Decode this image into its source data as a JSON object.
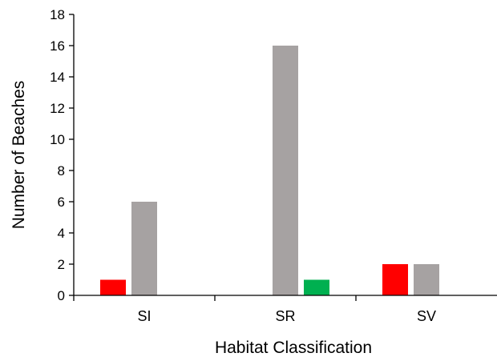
{
  "chart_data": {
    "type": "bar",
    "title": "",
    "xlabel": "Habitat Classification",
    "ylabel": "Number of Beaches",
    "categories": [
      "SI",
      "SR",
      "SV"
    ],
    "ylim": [
      0,
      18
    ],
    "yticks": [
      0,
      2,
      4,
      6,
      8,
      10,
      12,
      14,
      16,
      18
    ],
    "grid": false,
    "legend": "none",
    "series": [
      {
        "color": "#ff0000",
        "values": [
          1,
          0,
          2
        ]
      },
      {
        "color": "#a6a2a2",
        "values": [
          6,
          16,
          2
        ]
      },
      {
        "color": "#00b050",
        "values": [
          0,
          1,
          0
        ]
      }
    ]
  }
}
